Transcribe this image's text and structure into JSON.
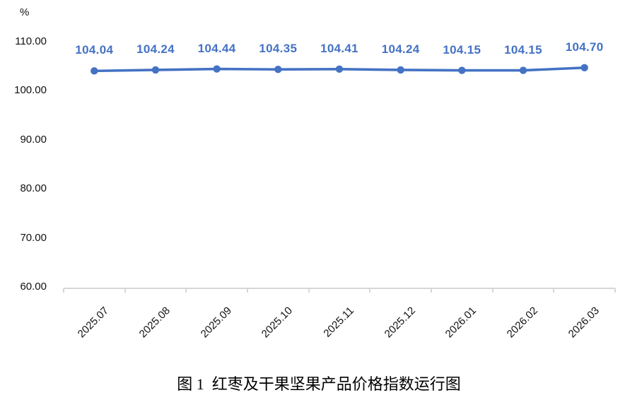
{
  "chart_data": {
    "type": "line",
    "title": "",
    "unit_label": "%",
    "categories": [
      "2025.07",
      "2025.08",
      "2025.09",
      "2025.10",
      "2025.11",
      "2025.12",
      "2026.01",
      "2026.02",
      "2026.03"
    ],
    "series": [
      {
        "name": "price-index",
        "values": [
          104.04,
          104.24,
          104.44,
          104.35,
          104.41,
          104.24,
          104.15,
          104.15,
          104.7
        ]
      }
    ],
    "data_labels": [
      "104.04",
      "104.24",
      "104.44",
      "104.35",
      "104.41",
      "104.24",
      "104.15",
      "104.15",
      "104.70"
    ],
    "ylim": [
      60,
      110
    ],
    "ytick_values": [
      110,
      100,
      90,
      80,
      70,
      60
    ],
    "ytick_labels": [
      "110.00",
      "100.00",
      "90.00",
      "80.00",
      "70.00",
      "60.00"
    ],
    "grid": false,
    "legend": "none",
    "line_color": "#4472C4",
    "marker_color": "#4472C4",
    "data_label_color": "#4472C4",
    "axis_color": "#d6d6d6",
    "text_color": "#111111"
  },
  "caption": "图 1  红枣及干果坚果产品价格指数运行图"
}
